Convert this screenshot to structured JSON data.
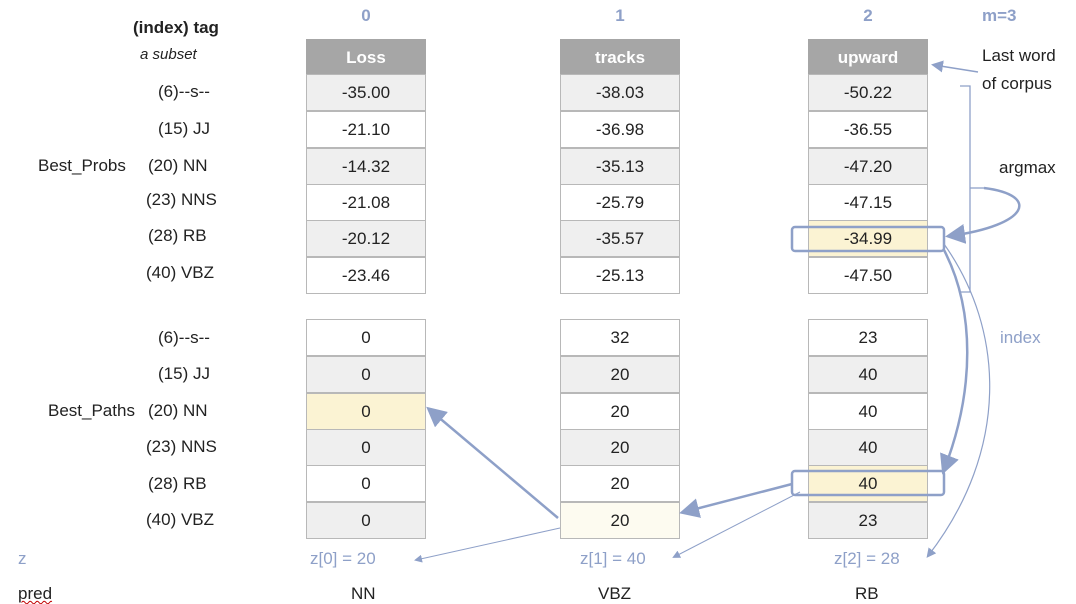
{
  "header": {
    "index_tag": "(index) tag",
    "subset": "a subset",
    "m_label": "m=3",
    "col_indices": [
      "0",
      "1",
      "2"
    ]
  },
  "columns": [
    "Loss",
    "tracks",
    "upward"
  ],
  "tags": [
    "(6)--s--",
    "(15) JJ",
    "(20) NN",
    "(23) NNS",
    "(28) RB",
    "(40) VBZ"
  ],
  "best_probs": {
    "label": "Best_Probs",
    "rows": [
      [
        "-35.00",
        "-38.03",
        "-50.22"
      ],
      [
        "-21.10",
        "-36.98",
        "-36.55"
      ],
      [
        "-14.32",
        "-35.13",
        "-47.20"
      ],
      [
        "-21.08",
        "-25.79",
        "-47.15"
      ],
      [
        "-20.12",
        "-35.57",
        "-34.99"
      ],
      [
        "-23.46",
        "-25.13",
        "-47.50"
      ]
    ]
  },
  "best_paths": {
    "label": "Best_Paths",
    "rows": [
      [
        "0",
        "32",
        "23"
      ],
      [
        "0",
        "20",
        "40"
      ],
      [
        "0",
        "20",
        "40"
      ],
      [
        "0",
        "20",
        "40"
      ],
      [
        "0",
        "20",
        "40"
      ],
      [
        "0",
        "20",
        "23"
      ]
    ]
  },
  "annotations": {
    "last_word_line1": "Last word",
    "last_word_line2": "of corpus",
    "argmax": "argmax",
    "index": "index"
  },
  "z": {
    "label": "z",
    "values": [
      "z[0] = 20",
      "z[1] = 40",
      "z[2] = 28"
    ]
  },
  "pred": {
    "label": "pred",
    "values": [
      "NN",
      "VBZ",
      "RB"
    ]
  },
  "colors": {
    "accent": "#8ea0c8",
    "highlight": "#fbf3d3",
    "header_bg": "#a6a6a6",
    "row_shade": "#efefef"
  }
}
